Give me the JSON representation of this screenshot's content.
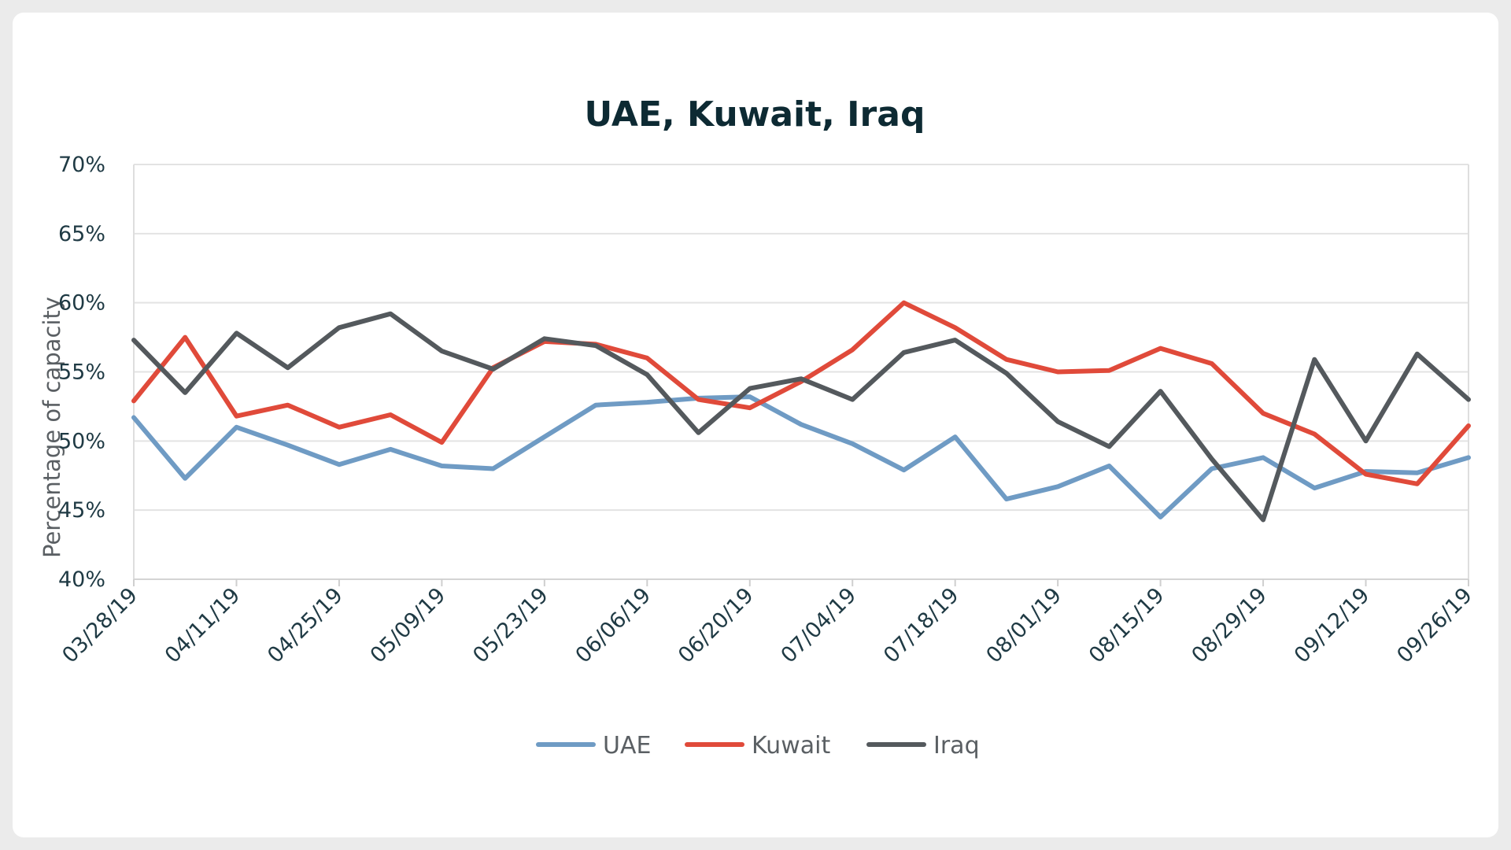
{
  "chart_data": {
    "type": "line",
    "title": "UAE, Kuwait, Iraq",
    "xlabel": "",
    "ylabel": "Percentage of capacity",
    "ylim": [
      40,
      70
    ],
    "ytick_values": [
      40,
      45,
      50,
      55,
      60,
      65,
      70
    ],
    "yticks": [
      "40%",
      "45%",
      "50%",
      "55%",
      "60%",
      "65%",
      "70%"
    ],
    "xticks": [
      "03/28/19",
      "04/11/19",
      "04/25/19",
      "05/09/19",
      "05/23/19",
      "06/06/19",
      "06/20/19",
      "07/04/19",
      "07/18/19",
      "08/01/19",
      "08/15/19",
      "08/29/19",
      "09/12/19",
      "09/26/19"
    ],
    "x": [
      "03/28/19",
      "04/04/19",
      "04/11/19",
      "04/18/19",
      "04/25/19",
      "05/02/19",
      "05/09/19",
      "05/16/19",
      "05/23/19",
      "05/30/19",
      "06/06/19",
      "06/13/19",
      "06/20/19",
      "06/27/19",
      "07/04/19",
      "07/11/19",
      "07/18/19",
      "07/25/19",
      "08/01/19",
      "08/08/19",
      "08/15/19",
      "08/22/19",
      "08/29/19",
      "09/05/19",
      "09/12/19",
      "09/19/19",
      "09/26/19"
    ],
    "series": [
      {
        "name": "UAE",
        "color": "#6f9bc4",
        "values": [
          51.7,
          47.3,
          51.0,
          49.7,
          48.3,
          49.4,
          48.2,
          48.0,
          50.3,
          52.6,
          52.8,
          53.1,
          53.2,
          51.2,
          49.8,
          47.9,
          50.3,
          45.8,
          46.7,
          48.2,
          44.5,
          48.0,
          48.8,
          46.6,
          47.8,
          47.7,
          48.8
        ]
      },
      {
        "name": "Kuwait",
        "color": "#e04a3a",
        "values": [
          52.9,
          57.5,
          51.8,
          52.6,
          51.0,
          51.9,
          49.9,
          55.3,
          57.2,
          57.0,
          56.0,
          53.0,
          52.4,
          54.3,
          56.6,
          60.0,
          58.2,
          55.9,
          55.0,
          55.1,
          56.7,
          55.6,
          52.0,
          50.5,
          47.6,
          46.9,
          51.1
        ]
      },
      {
        "name": "Iraq",
        "color": "#54595d",
        "values": [
          57.3,
          53.5,
          57.8,
          55.3,
          58.2,
          59.2,
          56.5,
          55.2,
          57.4,
          56.9,
          54.8,
          50.6,
          53.8,
          54.5,
          53.0,
          56.4,
          57.3,
          54.9,
          51.4,
          49.6,
          53.6,
          48.7,
          44.3,
          55.9,
          50.0,
          56.3,
          53.0
        ]
      }
    ],
    "legend_position": "bottom-center",
    "grid": true
  }
}
